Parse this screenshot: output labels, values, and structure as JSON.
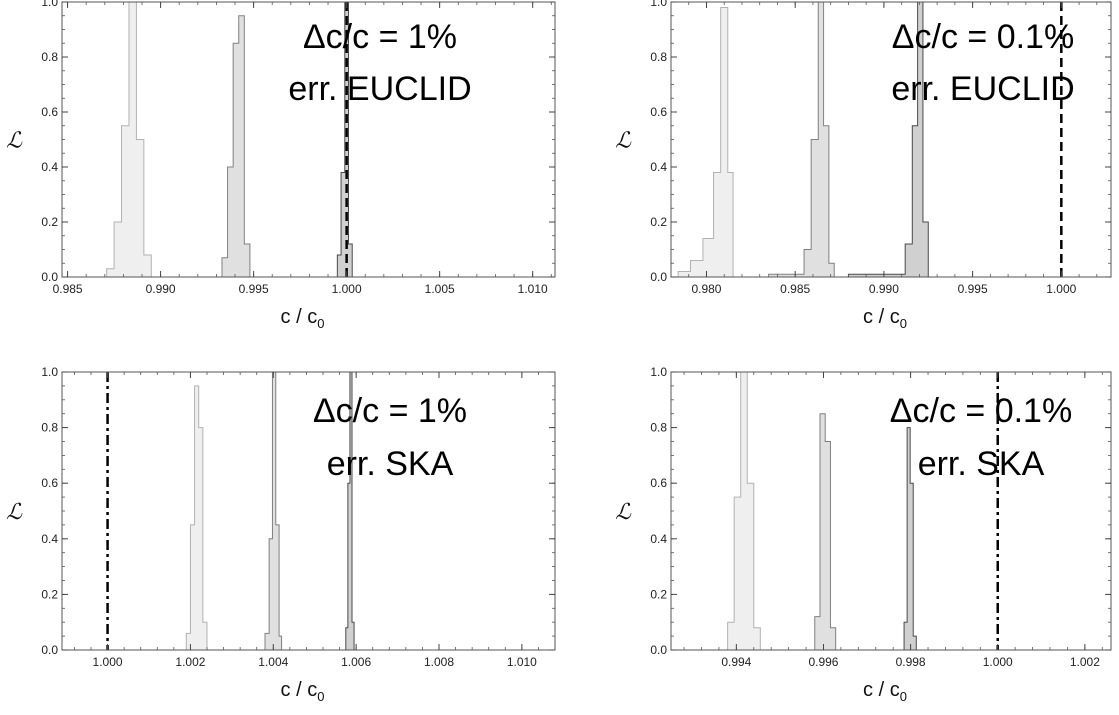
{
  "style": {
    "fill_colors": [
      "#efefef",
      "#e0e0e0",
      "#d0d0d0"
    ],
    "edge_colors": [
      "#b2b2b2",
      "#808080",
      "#4a4a4a"
    ],
    "reference_line_color": "#000000"
  },
  "chart_data": [
    {
      "type": "histogram",
      "xlabel": "c / c",
      "xlabel_sub": "0",
      "ylabel": "ℒ",
      "xlim": [
        0.9847,
        1.0112
      ],
      "ylim": [
        0,
        1.0
      ],
      "xticks": [
        0.985,
        0.99,
        0.995,
        1.0,
        1.005,
        1.01
      ],
      "xtick_labels": [
        "0.985",
        "0.990",
        "0.995",
        "1.000",
        "1.005",
        "1.010"
      ],
      "yticks": [
        0.0,
        0.2,
        0.4,
        0.6,
        0.8,
        1.0
      ],
      "ytick_labels": [
        "0.0",
        "0.2",
        "0.4",
        "0.6",
        "0.8",
        "1.0"
      ],
      "reference_x": 1.0,
      "reference_style": "dashed",
      "annotation_lines": [
        "Δc/c = 1%",
        "err. EUCLID"
      ],
      "series": [
        {
          "bins": [
            0.9871,
            0.9875,
            0.9879,
            0.9883,
            0.9887,
            0.9891,
            0.9895
          ],
          "values": [
            0.03,
            0.2,
            0.55,
            1.0,
            0.5,
            0.08
          ]
        },
        {
          "bins": [
            0.9933,
            0.9936,
            0.9939,
            0.9942,
            0.9945,
            0.9948
          ],
          "values": [
            0.07,
            0.4,
            0.85,
            0.95,
            0.12
          ]
        },
        {
          "bins": [
            0.9995,
            0.9997,
            0.9999,
            1.0001,
            1.0003
          ],
          "values": [
            0.08,
            0.38,
            1.0,
            0.12
          ]
        }
      ]
    },
    {
      "type": "histogram",
      "xlabel": "c / c",
      "xlabel_sub": "0",
      "ylabel": "ℒ",
      "xlim": [
        0.978,
        1.0028
      ],
      "ylim": [
        0,
        1.0
      ],
      "xticks": [
        0.98,
        0.985,
        0.99,
        0.995,
        1.0
      ],
      "xtick_labels": [
        "0.980",
        "0.985",
        "0.990",
        "0.995",
        "1.000"
      ],
      "yticks": [
        0.0,
        0.2,
        0.4,
        0.6,
        0.8,
        1.0
      ],
      "ytick_labels": [
        "0.0",
        "0.2",
        "0.4",
        "0.6",
        "0.8",
        "1.0"
      ],
      "reference_x": 1.0,
      "reference_style": "dashed",
      "annotation_lines": [
        "Δc/c = 0.1%",
        "err. EUCLID"
      ],
      "series": [
        {
          "bins": [
            0.9784,
            0.9791,
            0.9798,
            0.9804,
            0.9808,
            0.9812,
            0.9815
          ],
          "values": [
            0.02,
            0.06,
            0.14,
            0.38,
            0.98,
            0.38
          ]
        },
        {
          "bins": [
            0.9835,
            0.9855,
            0.9859,
            0.9863,
            0.9866,
            0.9869,
            0.9872
          ],
          "values": [
            0.01,
            0.1,
            0.5,
            1.0,
            0.55,
            0.05
          ]
        },
        {
          "bins": [
            0.988,
            0.9912,
            0.9916,
            0.9919,
            0.9922,
            0.9925
          ],
          "values": [
            0.01,
            0.12,
            0.55,
            1.0,
            0.2
          ]
        }
      ]
    },
    {
      "type": "histogram",
      "xlabel": "c / c",
      "xlabel_sub": "0",
      "ylabel": "ℒ",
      "xlim": [
        0.9989,
        1.0108
      ],
      "ylim": [
        0,
        1.0
      ],
      "xticks": [
        1.0,
        1.002,
        1.004,
        1.006,
        1.008,
        1.01
      ],
      "xtick_labels": [
        "1.000",
        "1.002",
        "1.004",
        "1.006",
        "1.008",
        "1.010"
      ],
      "yticks": [
        0.0,
        0.2,
        0.4,
        0.6,
        0.8,
        1.0
      ],
      "ytick_labels": [
        "0.0",
        "0.2",
        "0.4",
        "0.6",
        "0.8",
        "1.0"
      ],
      "reference_x": 1.0,
      "reference_style": "dashdot",
      "annotation_lines": [
        "Δc/c = 1%",
        "err. SKA"
      ],
      "series": [
        {
          "bins": [
            1.0019,
            1.002,
            1.0021,
            1.0022,
            1.0023,
            1.0024
          ],
          "values": [
            0.06,
            0.45,
            0.95,
            0.8,
            0.1
          ]
        },
        {
          "bins": [
            1.0038,
            1.0039,
            1.00398,
            1.00406,
            1.00414,
            1.0042
          ],
          "values": [
            0.06,
            0.4,
            1.0,
            0.45,
            0.05
          ]
        },
        {
          "bins": [
            1.00575,
            1.0058,
            1.00585,
            1.0059,
            1.00595
          ],
          "values": [
            0.08,
            0.6,
            1.0,
            0.1
          ]
        }
      ]
    },
    {
      "type": "histogram",
      "xlabel": "c / c",
      "xlabel_sub": "0",
      "ylabel": "ℒ",
      "xlim": [
        0.9925,
        1.0026
      ],
      "ylim": [
        0,
        1.0
      ],
      "xticks": [
        0.994,
        0.996,
        0.998,
        1.0,
        1.002
      ],
      "xtick_labels": [
        "0.994",
        "0.996",
        "0.998",
        "1.000",
        "1.002"
      ],
      "yticks": [
        0.0,
        0.2,
        0.4,
        0.6,
        0.8,
        1.0
      ],
      "ytick_labels": [
        "0.0",
        "0.2",
        "0.4",
        "0.6",
        "0.8",
        "1.0"
      ],
      "reference_x": 1.0,
      "reference_style": "dashdot",
      "annotation_lines": [
        "Δc/c = 0.1%",
        "err. SKA"
      ],
      "series": [
        {
          "bins": [
            0.9938,
            0.99395,
            0.9941,
            0.99425,
            0.9944,
            0.99455
          ],
          "values": [
            0.1,
            0.55,
            1.0,
            0.6,
            0.08
          ]
        },
        {
          "bins": [
            0.9958,
            0.99592,
            0.99604,
            0.99616,
            0.99628
          ],
          "values": [
            0.12,
            0.85,
            0.75,
            0.08
          ]
        },
        {
          "bins": [
            0.99785,
            0.99792,
            0.99799,
            0.99806,
            0.99813
          ],
          "values": [
            0.1,
            0.8,
            0.6,
            0.05
          ]
        }
      ]
    }
  ]
}
